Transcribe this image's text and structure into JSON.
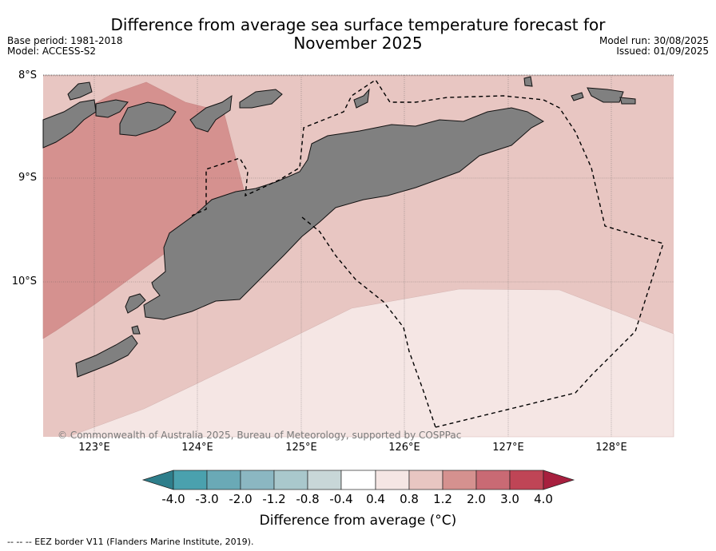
{
  "header": {
    "title_line1": "Difference from average sea surface temperature forecast for",
    "title_line2": "November 2025",
    "base_period": "Base period: 1981-2018",
    "model": "Model: ACCESS-S2",
    "model_run": "Model run: 30/08/2025",
    "issued": "Issued: 01/09/2025"
  },
  "map": {
    "latitude_labels": [
      "8°S",
      "9°S",
      "10°S"
    ],
    "longitude_labels": [
      "123°E",
      "124°E",
      "125°E",
      "126°E",
      "127°E",
      "128°E"
    ],
    "lat_range": [
      -11.5,
      -8.0
    ],
    "lon_range": [
      122.5,
      128.6
    ],
    "copyright": "© Commonwealth of Australia 2025, Bureau of Meteorology, supported by COSPPac",
    "colors": {
      "land": "#808080",
      "anomaly_0_4_to_0_8": "#f5e6e4",
      "anomaly_0_8_to_1_2": "#e8c6c2",
      "anomaly_1_2_to_2_0": "#d5918f"
    }
  },
  "colorbar": {
    "ticks": [
      "-4.0",
      "-3.0",
      "-2.0",
      "-1.2",
      "-0.8",
      "-0.4",
      "0.4",
      "0.8",
      "1.2",
      "2.0",
      "3.0",
      "4.0"
    ],
    "colors": [
      "#2e7e8b",
      "#4aa1ae",
      "#6aa9b6",
      "#8bb7c2",
      "#a9c8cc",
      "#c8d7d8",
      "#ffffff",
      "#f5e6e4",
      "#e8c6c2",
      "#d5918f",
      "#c96a74",
      "#bf4556",
      "#a71f3e"
    ],
    "label": "Difference from average (°C)"
  },
  "footnote": "--  --  -- EEZ border V11 (Flanders Marine Institute, 2019)."
}
